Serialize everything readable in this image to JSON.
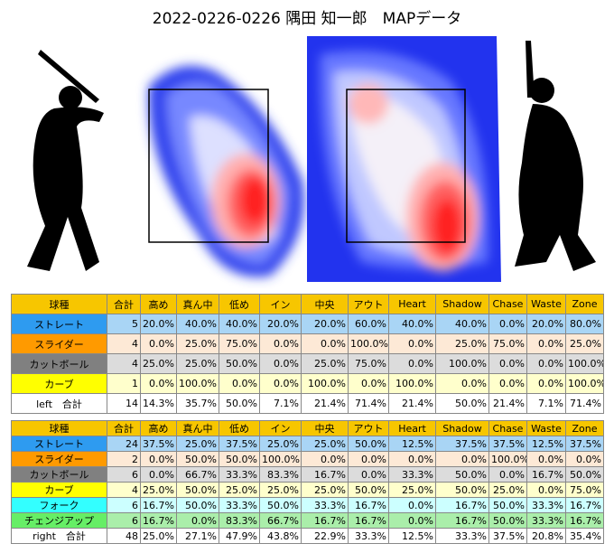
{
  "title": "2022-0226-0226 隅田 知一郎　MAPデータ",
  "tables": [
    {
      "header": [
        "球種",
        "合計",
        "高め",
        "真ん中",
        "低め",
        "イン",
        "中央",
        "アウト",
        "Heart",
        "Shadow",
        "Chase",
        "Waste",
        "Zone"
      ],
      "rows": [
        [
          "ストレート",
          "5",
          "20.0%",
          "40.0%",
          "40.0%",
          "20.0%",
          "20.0%",
          "60.0%",
          "40.0%",
          "40.0%",
          "0.0%",
          "20.0%",
          "80.0%"
        ],
        [
          "スライダー",
          "4",
          "0.0%",
          "25.0%",
          "75.0%",
          "0.0%",
          "0.0%",
          "100.0%",
          "0.0%",
          "25.0%",
          "75.0%",
          "0.0%",
          "25.0%"
        ],
        [
          "カットボール",
          "4",
          "25.0%",
          "25.0%",
          "50.0%",
          "0.0%",
          "25.0%",
          "75.0%",
          "0.0%",
          "100.0%",
          "0.0%",
          "0.0%",
          "100.0%"
        ],
        [
          "カーブ",
          "1",
          "0.0%",
          "100.0%",
          "0.0%",
          "0.0%",
          "100.0%",
          "0.0%",
          "100.0%",
          "0.0%",
          "0.0%",
          "0.0%",
          "100.0%"
        ],
        [
          "left　合計",
          "14",
          "14.3%",
          "35.7%",
          "50.0%",
          "7.1%",
          "21.4%",
          "71.4%",
          "21.4%",
          "50.0%",
          "21.4%",
          "7.1%",
          "71.4%"
        ]
      ]
    },
    {
      "header": [
        "球種",
        "合計",
        "高め",
        "真ん中",
        "低め",
        "イン",
        "中央",
        "アウト",
        "Heart",
        "Shadow",
        "Chase",
        "Waste",
        "Zone"
      ],
      "rows": [
        [
          "ストレート",
          "24",
          "37.5%",
          "25.0%",
          "37.5%",
          "25.0%",
          "25.0%",
          "50.0%",
          "12.5%",
          "37.5%",
          "37.5%",
          "12.5%",
          "37.5%"
        ],
        [
          "スライダー",
          "2",
          "0.0%",
          "50.0%",
          "50.0%",
          "100.0%",
          "0.0%",
          "0.0%",
          "0.0%",
          "0.0%",
          "100.0%",
          "0.0%",
          "0.0%"
        ],
        [
          "カットボール",
          "6",
          "0.0%",
          "66.7%",
          "33.3%",
          "83.3%",
          "16.7%",
          "0.0%",
          "33.3%",
          "50.0%",
          "0.0%",
          "16.7%",
          "50.0%"
        ],
        [
          "カーブ",
          "4",
          "25.0%",
          "50.0%",
          "25.0%",
          "25.0%",
          "25.0%",
          "50.0%",
          "25.0%",
          "50.0%",
          "25.0%",
          "0.0%",
          "75.0%"
        ],
        [
          "フォーク",
          "6",
          "16.7%",
          "50.0%",
          "33.3%",
          "50.0%",
          "33.3%",
          "16.7%",
          "0.0%",
          "16.7%",
          "50.0%",
          "33.3%",
          "16.7%"
        ],
        [
          "チェンジアップ",
          "6",
          "16.7%",
          "0.0%",
          "83.3%",
          "66.7%",
          "16.7%",
          "16.7%",
          "0.0%",
          "16.7%",
          "50.0%",
          "33.3%",
          "16.7%"
        ],
        [
          "right　合計",
          "48",
          "25.0%",
          "27.1%",
          "47.9%",
          "43.8%",
          "22.9%",
          "33.3%",
          "12.5%",
          "33.3%",
          "37.5%",
          "20.8%",
          "35.4%"
        ]
      ]
    }
  ]
}
